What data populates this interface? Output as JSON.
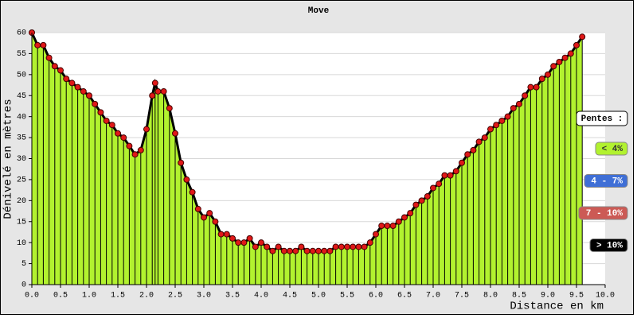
{
  "chart_data": {
    "type": "line",
    "title": "Move",
    "x_label": "Distance en km",
    "y_label": "Dénivelé en mètres",
    "x": [
      0.0,
      0.1,
      0.2,
      0.3,
      0.4,
      0.5,
      0.6,
      0.7,
      0.8,
      0.9,
      1.0,
      1.1,
      1.2,
      1.3,
      1.4,
      1.5,
      1.6,
      1.7,
      1.8,
      1.9,
      2.0,
      2.1,
      2.15,
      2.2,
      2.3,
      2.4,
      2.5,
      2.6,
      2.7,
      2.8,
      2.9,
      3.0,
      3.1,
      3.2,
      3.3,
      3.4,
      3.5,
      3.6,
      3.7,
      3.8,
      3.9,
      4.0,
      4.1,
      4.2,
      4.3,
      4.4,
      4.5,
      4.6,
      4.7,
      4.8,
      4.9,
      5.0,
      5.1,
      5.2,
      5.3,
      5.4,
      5.5,
      5.6,
      5.7,
      5.8,
      5.9,
      6.0,
      6.1,
      6.2,
      6.3,
      6.4,
      6.5,
      6.6,
      6.7,
      6.8,
      6.9,
      7.0,
      7.1,
      7.2,
      7.3,
      7.4,
      7.5,
      7.6,
      7.7,
      7.8,
      7.9,
      8.0,
      8.1,
      8.2,
      8.3,
      8.4,
      8.5,
      8.6,
      8.7,
      8.8,
      8.9,
      9.0,
      9.1,
      9.2,
      9.3,
      9.4,
      9.5,
      9.6
    ],
    "series": [
      {
        "color": "#b2f22f",
        "values": [
          60,
          57,
          57,
          54,
          52,
          51,
          49,
          48,
          47,
          46,
          45,
          43,
          41,
          39,
          38,
          36,
          35,
          33,
          31,
          32,
          37,
          45,
          48,
          46,
          46,
          42,
          36,
          29,
          25,
          22,
          18,
          16,
          17,
          15,
          12,
          12,
          11,
          10,
          10,
          11,
          9,
          10,
          9,
          8,
          9,
          8,
          8,
          8,
          9,
          8,
          8,
          8,
          8,
          8,
          9,
          9,
          9,
          9,
          9,
          9,
          10,
          12,
          14,
          14,
          14,
          15,
          16,
          17,
          19,
          20,
          21,
          23,
          24,
          26,
          26,
          27,
          29,
          31,
          32,
          34,
          35,
          37,
          38,
          39,
          40,
          42,
          43,
          45,
          47,
          47,
          49,
          50,
          52,
          53,
          54,
          55,
          57,
          59
        ]
      }
    ],
    "xlim": [
      0,
      10
    ],
    "ylim": [
      0,
      60
    ],
    "xticks": [
      {
        "value": 0,
        "label": "0.0"
      },
      0.5,
      {
        "value": 1,
        "label": "1.0"
      },
      1.5,
      {
        "value": 2,
        "label": "2.0"
      },
      2.5,
      {
        "value": 3,
        "label": "3.0"
      },
      3.5,
      {
        "value": 4,
        "label": "4.0"
      },
      4.5,
      {
        "value": 5,
        "label": "5.0"
      },
      5.5,
      {
        "value": 6,
        "label": "6.0"
      },
      6.5,
      {
        "value": 7,
        "label": "7.0"
      },
      7.5,
      {
        "value": 8,
        "label": "8.0"
      },
      8.5,
      {
        "value": 9,
        "label": "9.0"
      },
      9.5,
      {
        "value": 10,
        "label": "10.0"
      }
    ],
    "yticks": [
      0,
      5,
      10,
      15,
      20,
      25,
      30,
      35,
      40,
      45,
      50,
      55,
      60
    ],
    "grid": true,
    "legend": {
      "title": "Pentes :",
      "items": [
        {
          "label": "< 4%",
          "color": "#b2f22f"
        },
        {
          "label": "4 - 7%",
          "color": "#3f6fd6"
        },
        {
          "label": "7 - 10%",
          "color": "#cc5a55"
        },
        {
          "label": "> 10%",
          "color": "#000000"
        }
      ]
    }
  }
}
